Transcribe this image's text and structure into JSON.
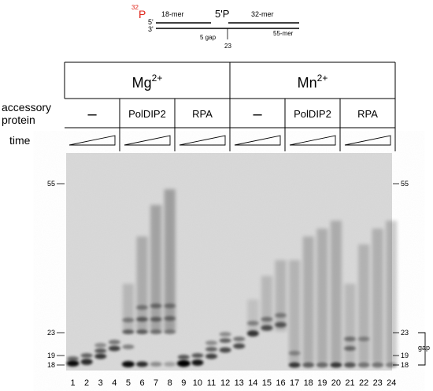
{
  "substrate": {
    "label_32p_sup": "32",
    "label_32p": "P",
    "label_5prime_left": "5'",
    "label_3prime_left": "3'",
    "label_5p": "5'P",
    "label_18mer": "18-mer",
    "label_32mer": "32-mer",
    "label_55mer": "55-mer",
    "label_gap": "5 gap",
    "label_23": "23",
    "accent_color": "#e0261b"
  },
  "header": {
    "groups": [
      {
        "ion": "Mg",
        "charge": "2+"
      },
      {
        "ion": "Mn",
        "charge": "2+"
      }
    ],
    "row_accessory_label_line1": "accessory",
    "row_accessory_label_line2": "protein",
    "row_time_label": "time",
    "accessory": [
      "–",
      "PolDIP2",
      "RPA",
      "–",
      "PolDIP2",
      "RPA"
    ]
  },
  "gel": {
    "size_markers_left": [
      "55",
      "23",
      "19",
      "18"
    ],
    "size_markers_right": [
      "55",
      "23",
      "19",
      "18"
    ],
    "gap_label": "gap",
    "lanes": [
      "1",
      "2",
      "3",
      "4",
      "5",
      "6",
      "7",
      "8",
      "9",
      "10",
      "11",
      "12",
      "13",
      "14",
      "15",
      "16",
      "17",
      "18",
      "19",
      "20",
      "21",
      "22",
      "23",
      "24"
    ]
  }
}
